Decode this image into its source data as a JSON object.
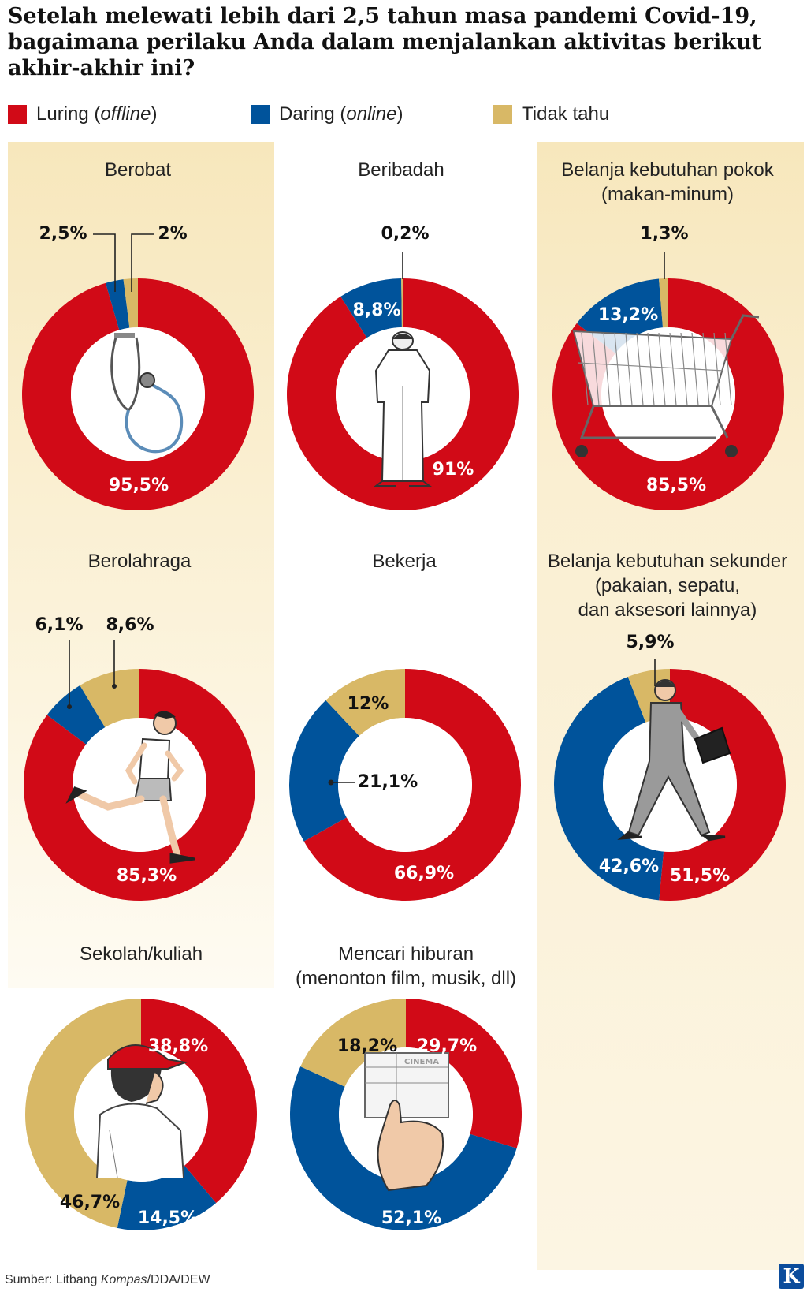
{
  "title": "Setelah melewati lebih dari 2,5 tahun masa pandemi Covid-19, bagaimana perilaku Anda dalam menjalankan aktivitas berikut akhir-akhir ini?",
  "legend": [
    {
      "label": "Luring",
      "sub": "offline",
      "color": "#d10a17"
    },
    {
      "label": "Daring",
      "sub": "online",
      "color": "#00539b"
    },
    {
      "label": "Tidak tahu",
      "sub": "",
      "color": "#d8b866"
    }
  ],
  "colors": {
    "luring": "#d10a17",
    "daring": "#00539b",
    "tidak_tahu": "#d8b866"
  },
  "chart_data": [
    {
      "type": "pie",
      "title": "Berobat",
      "categories": [
        "Luring (offline)",
        "Daring (online)",
        "Tidak tahu"
      ],
      "values": [
        95.5,
        2.5,
        2.0
      ],
      "labels": [
        "95,5%",
        "2,5%",
        "2%"
      ],
      "icon": "stethoscope-icon"
    },
    {
      "type": "pie",
      "title": "Beribadah",
      "categories": [
        "Luring (offline)",
        "Daring (online)",
        "Tidak tahu"
      ],
      "values": [
        91.0,
        8.8,
        0.2
      ],
      "labels": [
        "91%",
        "8,8%",
        "0,2%"
      ],
      "icon": "praying-man-icon"
    },
    {
      "type": "pie",
      "title": "Belanja kebutuhan pokok (makan-minum)",
      "title_lines": [
        "Belanja kebutuhan pokok",
        "(makan-minum)"
      ],
      "categories": [
        "Luring (offline)",
        "Daring (online)",
        "Tidak tahu"
      ],
      "values": [
        85.5,
        13.2,
        1.3
      ],
      "labels": [
        "85,5%",
        "13,2%",
        "1,3%"
      ],
      "icon": "shopping-cart-icon"
    },
    {
      "type": "pie",
      "title": "Berolahraga",
      "categories": [
        "Luring (offline)",
        "Daring (online)",
        "Tidak tahu"
      ],
      "values": [
        85.3,
        6.1,
        8.6
      ],
      "labels": [
        "85,3%",
        "6,1%",
        "8,6%"
      ],
      "icon": "runner-icon"
    },
    {
      "type": "pie",
      "title": "Bekerja",
      "categories": [
        "Luring (offline)",
        "Daring (online)",
        "Tidak tahu"
      ],
      "values": [
        66.9,
        21.1,
        12.0
      ],
      "labels": [
        "66,9%",
        "21,1%",
        "12%"
      ],
      "icon": ""
    },
    {
      "type": "pie",
      "title": "Belanja kebutuhan sekunder (pakaian, sepatu, dan aksesori lainnya)",
      "title_lines": [
        "Belanja kebutuhan sekunder",
        "(pakaian, sepatu,",
        "dan aksesori lainnya)"
      ],
      "categories": [
        "Luring (offline)",
        "Daring (online)",
        "Tidak tahu"
      ],
      "values": [
        51.5,
        42.6,
        5.9
      ],
      "labels": [
        "51,5%",
        "42,6%",
        "5,9%"
      ],
      "icon": "businessman-icon"
    },
    {
      "type": "pie",
      "title": "Sekolah/kuliah",
      "categories": [
        "Luring (offline)",
        "Daring (online)",
        "Tidak tahu"
      ],
      "values": [
        38.8,
        14.5,
        46.7
      ],
      "labels": [
        "38,8%",
        "14,5%",
        "46,7%"
      ],
      "icon": "student-icon"
    },
    {
      "type": "pie",
      "title": "Mencari hiburan (menonton film, musik, dll)",
      "title_lines": [
        "Mencari hiburan",
        "(menonton film, musik, dll)"
      ],
      "categories": [
        "Luring (offline)",
        "Daring (online)",
        "Tidak tahu"
      ],
      "values": [
        29.7,
        52.1,
        18.2
      ],
      "labels": [
        "29,7%",
        "52,1%",
        "18,2%"
      ],
      "icon": "cinema-ticket-icon",
      "icon_text": "CINEMA"
    }
  ],
  "source": {
    "prefix": "Sumber: Litbang ",
    "italic": "Kompas",
    "suffix": "/DDA/DEW"
  },
  "logo": "K"
}
